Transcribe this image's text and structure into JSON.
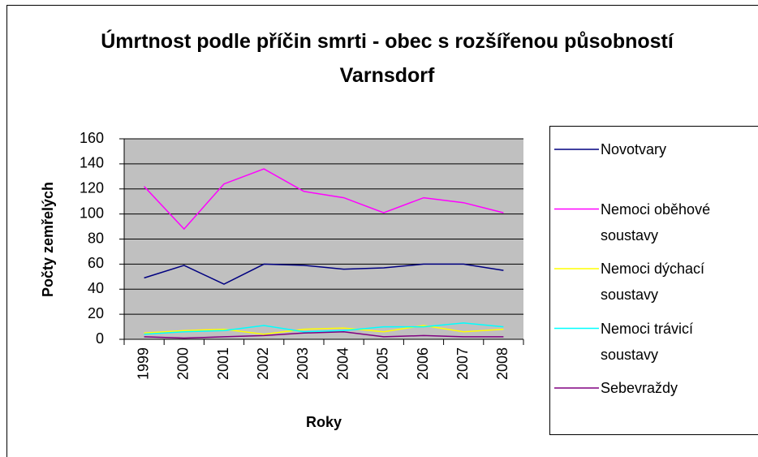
{
  "chart_data": {
    "type": "line",
    "title": "Úmrtnost podle příčin smrti - obec s rozšířenou působností Varnsdorf",
    "x_label": "Roky",
    "y_label": "Počty zemřelých",
    "categories": [
      "1999",
      "2000",
      "2001",
      "2002",
      "2003",
      "2004",
      "2005",
      "2006",
      "2007",
      "2008"
    ],
    "series": [
      {
        "name": "Novotvary",
        "color": "#000080",
        "values": [
          49,
          59,
          44,
          60,
          59,
          56,
          57,
          60,
          60,
          55
        ]
      },
      {
        "name": "Nemoci oběhové soustavy",
        "color": "#ff00ff",
        "values": [
          122,
          88,
          124,
          136,
          118,
          113,
          101,
          113,
          109,
          101
        ]
      },
      {
        "name": "Nemoci dýchací soustavy",
        "color": "#ffff00",
        "values": [
          5,
          7,
          8,
          4,
          8,
          9,
          6,
          11,
          6,
          8
        ]
      },
      {
        "name": "Nemoci trávicí soustavy",
        "color": "#00ffff",
        "values": [
          4,
          6,
          7,
          11,
          6,
          7,
          10,
          10,
          13,
          10
        ]
      },
      {
        "name": "Sebevraždy",
        "color": "#800080",
        "values": [
          2,
          1,
          2,
          3,
          5,
          6,
          2,
          3,
          2,
          2
        ]
      }
    ],
    "ylim": [
      0,
      160
    ],
    "yticks": [
      0,
      20,
      40,
      60,
      80,
      100,
      120,
      140,
      160
    ],
    "grid": true,
    "plot_background": "#c0c0c0"
  }
}
